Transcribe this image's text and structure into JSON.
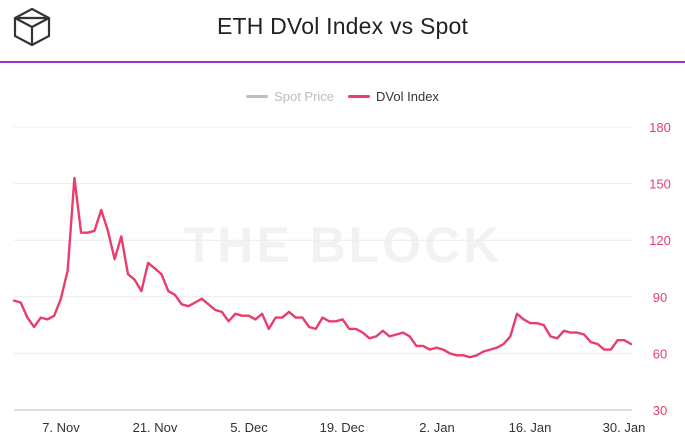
{
  "header": {
    "title": "ETH DVol Index vs Spot",
    "logo_icon": "the-block-cube-logo",
    "accent_color": "#9b30d9"
  },
  "watermark": "THE BLOCK",
  "chart_data": {
    "type": "line",
    "title": "ETH DVol Index vs Spot",
    "legend_position": "top-center",
    "grid": true,
    "x_tick_labels": [
      "7. Nov",
      "21. Nov",
      "5. Dec",
      "19. Dec",
      "2. Jan",
      "16. Jan",
      "30. Jan"
    ],
    "ylim": [
      30,
      180
    ],
    "y_ticks": [
      30,
      60,
      90,
      120,
      150,
      180
    ],
    "series": [
      {
        "name": "Spot Price",
        "color": "#bdbdc8",
        "visible": false,
        "values": []
      },
      {
        "name": "DVol Index",
        "color": "#e83e6c",
        "axis": "right",
        "values": [
          88,
          87,
          79,
          74,
          79,
          78,
          80,
          89,
          104,
          153,
          124,
          124,
          125,
          136,
          125,
          110,
          122,
          102,
          99,
          93,
          108,
          105,
          102,
          93,
          91,
          86,
          85,
          87,
          89,
          86,
          83,
          82,
          77,
          81,
          80,
          80,
          78,
          81,
          73,
          79,
          79,
          82,
          79,
          79,
          74,
          73,
          79,
          77,
          77,
          78,
          73,
          73,
          71,
          68,
          69,
          72,
          69,
          70,
          71,
          69,
          64,
          64,
          62,
          63,
          62,
          60,
          59,
          59,
          58,
          59,
          61,
          62,
          63,
          65,
          69,
          81,
          78,
          76,
          76,
          75,
          69,
          68,
          72,
          71,
          71,
          70,
          66,
          65,
          62,
          62,
          67,
          67,
          65
        ]
      }
    ]
  }
}
